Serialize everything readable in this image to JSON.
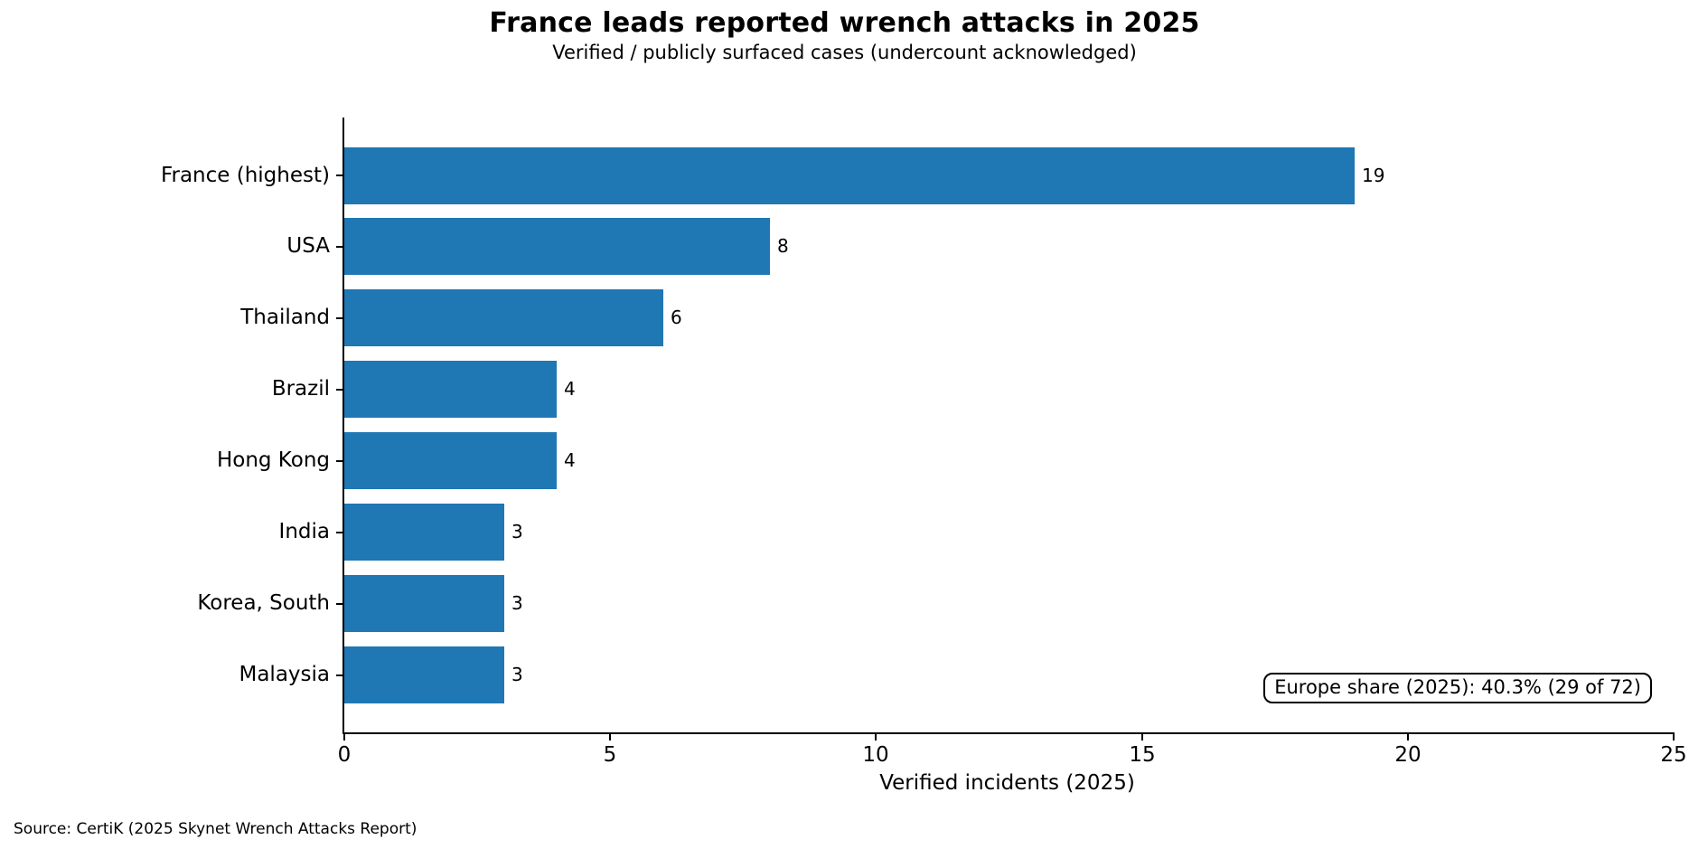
{
  "chart_data": {
    "type": "bar",
    "orientation": "horizontal",
    "title": "France leads reported wrench attacks in 2025",
    "subtitle": "Verified / publicly surfaced cases (undercount acknowledged)",
    "categories": [
      "France (highest)",
      "USA",
      "Thailand",
      "Brazil",
      "Hong Kong",
      "India",
      "Korea, South",
      "Malaysia"
    ],
    "values": [
      19,
      8,
      6,
      4,
      4,
      3,
      3,
      3
    ],
    "xlabel": "Verified incidents (2025)",
    "xlim": [
      0,
      25
    ],
    "xticks": [
      0,
      5,
      10,
      15,
      20,
      25
    ],
    "bar_color": "#1f77b4",
    "grid": false,
    "legend_position": "none",
    "annotation": "Europe share (2025): 40.3% (29 of 72)",
    "source": "Source: CertiK (2025 Skynet Wrench Attacks Report)"
  }
}
